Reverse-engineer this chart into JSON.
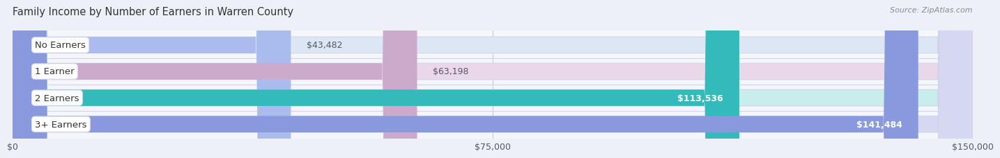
{
  "title": "Family Income by Number of Earners in Warren County",
  "source": "Source: ZipAtlas.com",
  "categories": [
    "No Earners",
    "1 Earner",
    "2 Earners",
    "3+ Earners"
  ],
  "values": [
    43482,
    63198,
    113536,
    141484
  ],
  "bar_colors": [
    "#aabbee",
    "#ccaacc",
    "#33bbbb",
    "#8899dd"
  ],
  "bar_bg_colors": [
    "#dde6f5",
    "#ead8ea",
    "#c8edec",
    "#d5d8f0"
  ],
  "value_labels": [
    "$43,482",
    "$63,198",
    "$113,536",
    "$141,484"
  ],
  "value_inside": [
    false,
    false,
    true,
    true
  ],
  "xlim": [
    0,
    150000
  ],
  "xticks": [
    0,
    75000,
    150000
  ],
  "xtick_labels": [
    "$0",
    "$75,000",
    "$150,000"
  ],
  "bg_color": "#eef0f7",
  "bar_area_bg": "#f5f6fa",
  "title_fontsize": 10.5,
  "label_fontsize": 9.5,
  "value_fontsize": 9,
  "source_fontsize": 8
}
